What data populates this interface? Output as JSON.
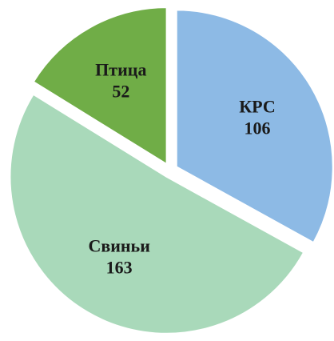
{
  "chart_data": {
    "type": "pie",
    "categories": [
      "КРС",
      "Свиньи",
      "Птица"
    ],
    "values": [
      106,
      163,
      52
    ],
    "colors": [
      "#8dbae5",
      "#a9d9ba",
      "#70ad47"
    ],
    "exploded": true
  }
}
